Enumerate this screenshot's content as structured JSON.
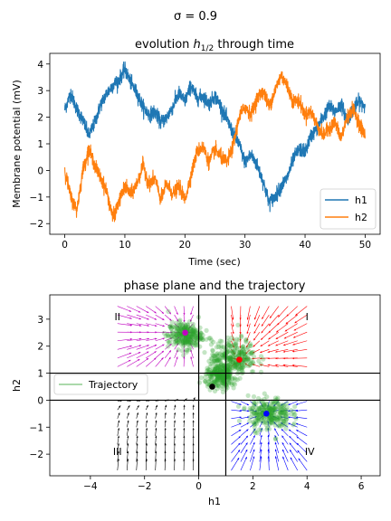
{
  "suptitle": "σ = 0.9",
  "chart_data": [
    {
      "type": "line",
      "title": "evolution h1/2 through time",
      "title_text": "evolution ",
      "title_sym": "h",
      "title_sub": "1/2",
      "title_tail": " through time",
      "xlabel": "Time (sec)",
      "ylabel": "Membrane potential (mV)",
      "xlim": [
        -2.5,
        52.5
      ],
      "ylim": [
        -2.4,
        4.4
      ],
      "xticks": [
        0,
        10,
        20,
        30,
        40,
        50
      ],
      "yticks": [
        -2,
        -1,
        0,
        1,
        2,
        3,
        4
      ],
      "legend": "lower-right",
      "series": [
        {
          "name": "h1",
          "color": "#1f77b4",
          "x": [
            0,
            1,
            2,
            3,
            4,
            5,
            6,
            7,
            8,
            9,
            10,
            11,
            12,
            13,
            14,
            15,
            16,
            17,
            18,
            19,
            20,
            21,
            22,
            23,
            24,
            25,
            26,
            27,
            28,
            29,
            30,
            31,
            32,
            33,
            34,
            35,
            36,
            37,
            38,
            39,
            40,
            41,
            42,
            43,
            44,
            45,
            46,
            47,
            48,
            49,
            50
          ],
          "values": [
            2.3,
            2.9,
            2.3,
            1.9,
            1.3,
            1.8,
            2.5,
            2.9,
            3.2,
            3.4,
            3.8,
            3.3,
            2.9,
            2.4,
            2.1,
            2.2,
            1.8,
            2.0,
            2.4,
            2.9,
            2.6,
            3.2,
            2.7,
            2.8,
            2.5,
            2.8,
            2.4,
            1.9,
            1.4,
            1.0,
            0.3,
            0.6,
            0.2,
            -0.4,
            -1.2,
            -1.0,
            -0.6,
            -0.3,
            0.4,
            0.8,
            0.7,
            1.3,
            1.6,
            2.0,
            2.4,
            2.2,
            2.5,
            1.9,
            2.3,
            2.6,
            2.4
          ]
        },
        {
          "name": "h2",
          "color": "#ff7f0e",
          "x": [
            0,
            1,
            2,
            3,
            4,
            5,
            6,
            7,
            8,
            9,
            10,
            11,
            12,
            13,
            14,
            15,
            16,
            17,
            18,
            19,
            20,
            21,
            22,
            23,
            24,
            25,
            26,
            27,
            28,
            29,
            30,
            31,
            32,
            33,
            34,
            35,
            36,
            37,
            38,
            39,
            40,
            41,
            42,
            43,
            44,
            45,
            46,
            47,
            48,
            49,
            50
          ],
          "values": [
            0.0,
            -1.0,
            -1.5,
            0.0,
            0.8,
            0.2,
            -0.3,
            -0.8,
            -1.8,
            -1.2,
            -0.6,
            -0.9,
            -0.5,
            0.2,
            -0.5,
            -0.3,
            -1.1,
            -0.5,
            -0.9,
            -0.6,
            -1.1,
            -0.2,
            0.7,
            0.9,
            0.3,
            0.8,
            0.5,
            0.3,
            0.9,
            2.0,
            2.4,
            2.1,
            2.7,
            3.0,
            2.4,
            3.0,
            3.6,
            3.2,
            2.6,
            2.6,
            2.1,
            2.2,
            1.7,
            1.3,
            1.6,
            1.8,
            1.2,
            2.0,
            2.3,
            1.8,
            1.3
          ]
        }
      ]
    },
    {
      "type": "scatter",
      "title": "phase plane and the trajectory",
      "xlabel": "h1",
      "ylabel": "h2",
      "xlim": [
        -5.5,
        6.7
      ],
      "ylim": [
        -2.8,
        3.9
      ],
      "xticks": [
        -4,
        -2,
        0,
        2,
        4,
        6
      ],
      "yticks": [
        -2,
        -1,
        0,
        1,
        2,
        3
      ],
      "legend": "center-left",
      "legend_label": "Trajectory",
      "trajectory_color": "#2ca02c",
      "quadrant_labels": [
        {
          "text": "I",
          "x": 4.0,
          "y": 3.1
        },
        {
          "text": "II",
          "x": -3.0,
          "y": 3.1
        },
        {
          "text": "III",
          "x": -3.0,
          "y": -1.9
        },
        {
          "text": "IV",
          "x": 4.1,
          "y": -1.9
        }
      ],
      "separatrices": {
        "h1": [
          0,
          1
        ],
        "h2": [
          0,
          1
        ]
      },
      "fixed_points": [
        {
          "x": -0.5,
          "y": 2.5,
          "color": "#bf00bf"
        },
        {
          "x": 1.5,
          "y": 1.5,
          "color": "#ff0000"
        },
        {
          "x": 0.5,
          "y": 0.5,
          "color": "#000000"
        },
        {
          "x": 2.5,
          "y": -0.5,
          "color": "#0000ff"
        }
      ],
      "trajectory_clusters": [
        {
          "x": -0.5,
          "y": 2.4,
          "spread": 0.45
        },
        {
          "x": 1.3,
          "y": 1.6,
          "spread": 0.6
        },
        {
          "x": 2.6,
          "y": -0.5,
          "spread": 0.55
        },
        {
          "x": 0.8,
          "y": 0.9,
          "spread": 0.4
        }
      ],
      "vector_field": [
        {
          "quadrant": "I",
          "color": "#ff0000",
          "center": [
            1.5,
            1.5
          ]
        },
        {
          "quadrant": "II",
          "color": "#bf00bf",
          "center": [
            -0.5,
            2.5
          ]
        },
        {
          "quadrant": "III",
          "color": "#000000",
          "center": [
            0.0,
            0.0
          ]
        },
        {
          "quadrant": "IV",
          "color": "#0000ff",
          "center": [
            2.5,
            -0.5
          ]
        }
      ]
    }
  ]
}
